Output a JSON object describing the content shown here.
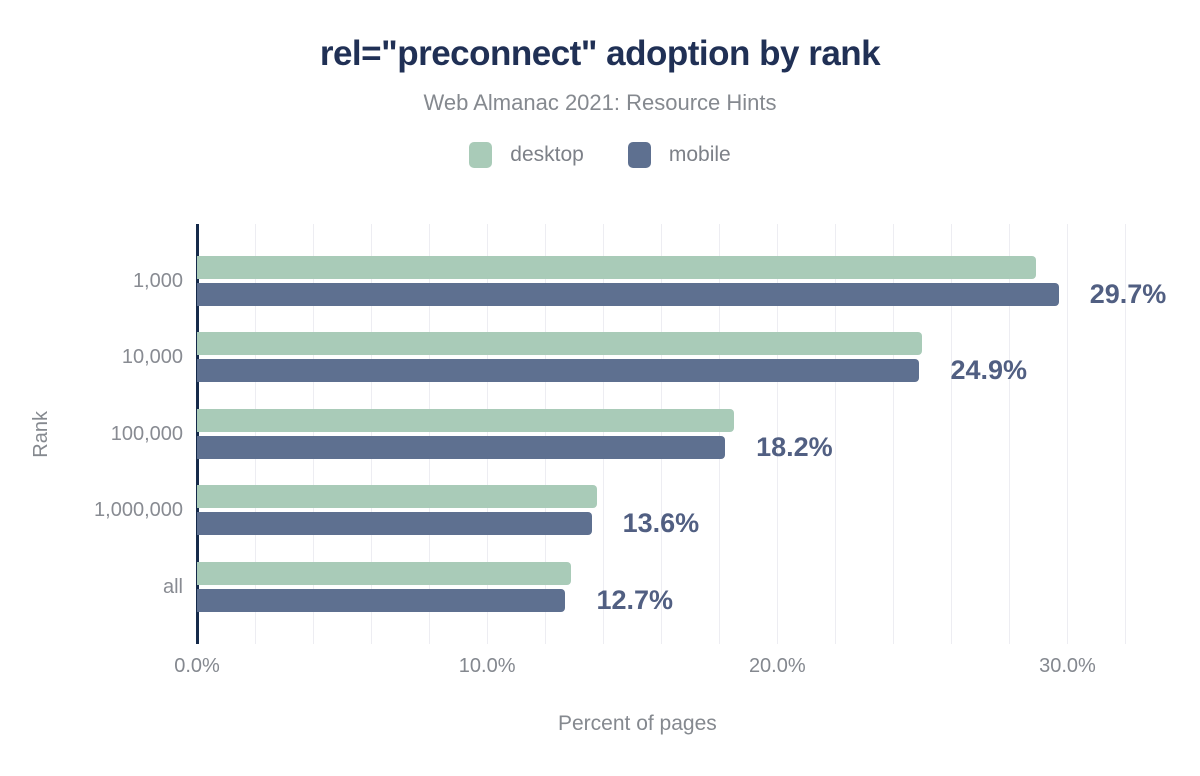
{
  "title": "rel=\"preconnect\" adoption by rank",
  "subtitle": "Web Almanac 2021: Resource Hints",
  "legend": [
    {
      "label": "desktop",
      "color": "#a9cbb8"
    },
    {
      "label": "mobile",
      "color": "#5e7090"
    }
  ],
  "colors": {
    "title": "#203055",
    "subtitle": "#85898f",
    "desktop_bar": "#a9cbb8",
    "mobile_bar": "#5e7090",
    "value_label": "#515f82",
    "axis_line": "#152a4a",
    "gridline": "#ededf2",
    "tick_text": "#84888f"
  },
  "chart_data": {
    "type": "bar",
    "orientation": "horizontal",
    "title": "rel=\"preconnect\" adoption by rank",
    "subtitle": "Web Almanac 2021: Resource Hints",
    "categories": [
      "1,000",
      "10,000",
      "100,000",
      "1,000,000",
      "all"
    ],
    "series": [
      {
        "name": "desktop",
        "color": "#a9cbb8",
        "values": [
          28.9,
          25.0,
          18.5,
          13.8,
          12.9
        ]
      },
      {
        "name": "mobile",
        "color": "#5e7090",
        "values": [
          29.7,
          24.9,
          18.2,
          13.6,
          12.7
        ]
      }
    ],
    "value_labels": [
      "29.7%",
      "24.9%",
      "18.2%",
      "13.6%",
      "12.7%"
    ],
    "value_labels_series": "mobile",
    "xlabel": "Percent of pages",
    "ylabel": "Rank",
    "x_ticks": [
      "0.0%",
      "10.0%",
      "20.0%",
      "30.0%"
    ],
    "x_tick_values": [
      0,
      10,
      20,
      30
    ],
    "xlim": [
      0,
      32.5
    ],
    "grid_step_pct": 2,
    "legend_position": "top",
    "grid": true
  }
}
